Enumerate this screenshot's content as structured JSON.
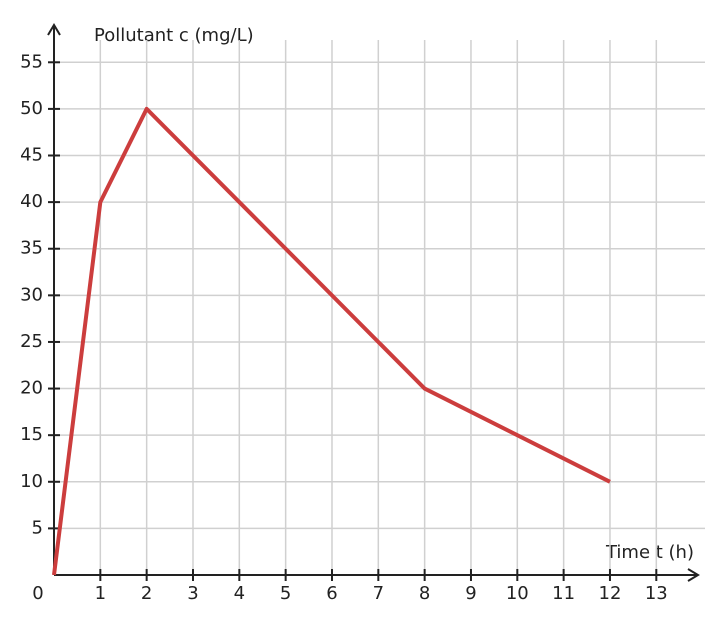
{
  "chart_data": {
    "type": "line",
    "x_label": "Time t (h)",
    "y_label": "Pollutant c (mg/L)",
    "x": [
      0,
      1,
      2,
      8,
      12
    ],
    "series": [
      {
        "values": [
          0,
          40,
          50,
          20,
          10
        ],
        "color": "#cc3d3d"
      }
    ],
    "xlim": [
      0,
      13.9
    ],
    "ylim": [
      0,
      59
    ],
    "xticks": [
      0,
      1,
      2,
      3,
      4,
      5,
      6,
      7,
      8,
      9,
      10,
      11,
      12,
      13
    ],
    "yticks": [
      5,
      10,
      15,
      20,
      25,
      30,
      35,
      40,
      45,
      50,
      55
    ],
    "grid": true
  }
}
